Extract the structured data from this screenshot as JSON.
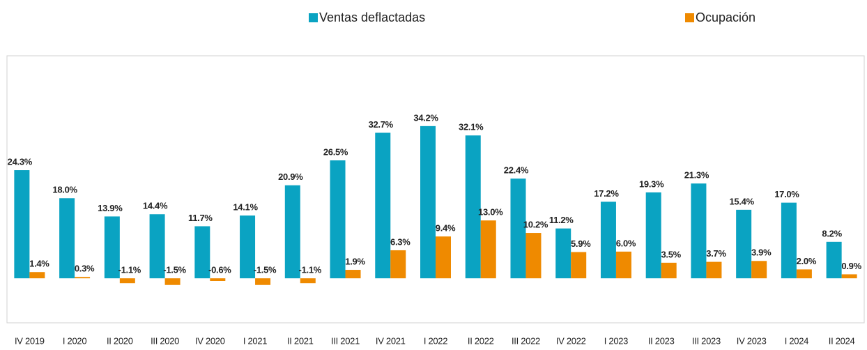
{
  "chart_data": {
    "type": "bar",
    "categories": [
      "IV 2019",
      "I 2020",
      "II 2020",
      "III 2020",
      "IV 2020",
      "I 2021",
      "II 2021",
      "III 2021",
      "IV 2021",
      "I 2022",
      "II 2022",
      "III 2022",
      "IV 2022",
      "I 2023",
      "II 2023",
      "III 2023",
      "IV 2023",
      "I 2024",
      "II 2024"
    ],
    "series": [
      {
        "name": "Ventas deflactadas",
        "color": "#0aa3c2",
        "values": [
          24.3,
          18.0,
          13.9,
          14.4,
          11.7,
          14.1,
          20.9,
          26.5,
          32.7,
          34.2,
          32.1,
          22.4,
          11.2,
          17.2,
          19.3,
          21.3,
          15.4,
          17.0,
          8.2
        ],
        "value_labels": [
          "24.3%",
          "18.0%",
          "13.9%",
          "14.4%",
          "11.7%",
          "14.1%",
          "20.9%",
          "26.5%",
          "32.7%",
          "34.2%",
          "32.1%",
          "22.4%",
          "11.2%",
          "17.2%",
          "19.3%",
          "21.3%",
          "15.4%",
          "17.0%",
          "8.2%"
        ]
      },
      {
        "name": "Ocupación",
        "color": "#ef8a00",
        "values": [
          1.4,
          0.3,
          -1.1,
          -1.5,
          -0.6,
          -1.5,
          -1.1,
          1.9,
          6.3,
          9.4,
          13.0,
          10.2,
          5.9,
          6.0,
          3.5,
          3.7,
          3.9,
          2.0,
          0.9
        ],
        "value_labels": [
          "1.4%",
          "0.3%",
          "-1.1%",
          "-1.5%",
          "-0.6%",
          "-1.5%",
          "-1.1%",
          "1.9%",
          "6.3%",
          "9.4%",
          "13.0%",
          "10.2%",
          "5.9%",
          "6.0%",
          "3.5%",
          "3.7%",
          "3.9%",
          "2.0%",
          "0.9%"
        ]
      }
    ],
    "ylim": [
      -10,
      50
    ],
    "legend": "top"
  }
}
